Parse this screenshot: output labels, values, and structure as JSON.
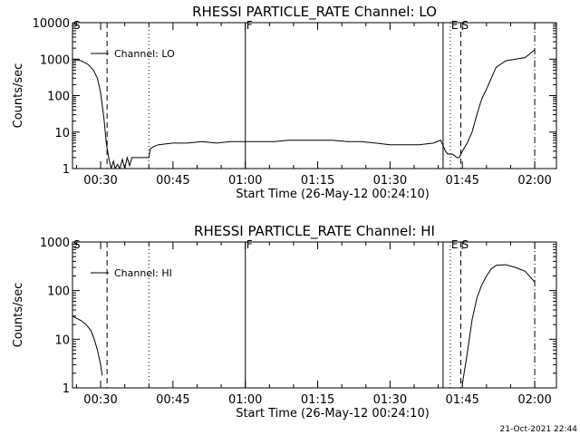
{
  "chart_data": [
    {
      "type": "line",
      "title": "RHESSI PARTICLE_RATE Channel: LO",
      "xlabel": "Start Time (26-May-12 00:24:10)",
      "ylabel": "Counts/sec",
      "yscale": "log",
      "ylim": [
        1,
        10000
      ],
      "xlim": [
        "00:24:10",
        "02:04:30"
      ],
      "y_tick_labels": [
        "1",
        "10",
        "100",
        "1000",
        "10000"
      ],
      "x_tick_labels": [
        "00:30",
        "00:45",
        "01:00",
        "01:15",
        "01:30",
        "01:45",
        "02:00"
      ],
      "x_ticks": [
        "00:30",
        "00:45",
        "01:00",
        "01:15",
        "01:30",
        "01:45",
        "02:00"
      ],
      "legend": {
        "label": "Channel: LO",
        "position": "top-left"
      },
      "grid": false,
      "markers": [
        {
          "label": "S",
          "time": "00:24:10",
          "style": "solid"
        },
        {
          "label": "",
          "time": "00:31:20",
          "style": "dashed"
        },
        {
          "label": "",
          "time": "00:40:00",
          "style": "dotted"
        },
        {
          "label": "F",
          "time": "01:00:00",
          "style": "solid"
        },
        {
          "label": "",
          "time": "01:41:00",
          "style": "solid"
        },
        {
          "label": "E",
          "time": "01:42:30",
          "style": "dotted"
        },
        {
          "label": "S",
          "time": "01:44:40",
          "style": "dashed"
        },
        {
          "label": "",
          "time": "02:00:00",
          "style": "dashdot"
        }
      ],
      "series": [
        {
          "name": "Channel: LO",
          "x": [
            "00:24:10",
            "00:26:00",
            "00:27:30",
            "00:28:30",
            "00:29:20",
            "00:30:00",
            "00:30:40",
            "00:31:10",
            "00:31:40",
            "00:32:10",
            "00:32:40",
            "00:33:00",
            "00:33:30",
            "00:34:00",
            "00:34:30",
            "00:35:00",
            "00:35:30",
            "00:36:00",
            "00:36:30",
            "00:37:00",
            "00:38:00",
            "00:39:00",
            "00:40:00",
            "00:40:20",
            "00:41:00",
            "00:42:00",
            "00:45:00",
            "00:48:00",
            "00:51:00",
            "00:54:00",
            "00:57:00",
            "01:00:00",
            "01:03:00",
            "01:06:00",
            "01:09:00",
            "01:12:00",
            "01:15:00",
            "01:18:00",
            "01:21:00",
            "01:24:00",
            "01:27:00",
            "01:30:00",
            "01:33:00",
            "01:36:00",
            "01:39:00",
            "01:40:30",
            "01:41:30",
            "01:42:00",
            "01:43:00",
            "01:43:50",
            "01:44:20",
            "01:45:00",
            "01:46:00",
            "01:47:00",
            "01:48:00",
            "01:49:00",
            "01:50:00",
            "01:51:00",
            "01:52:00",
            "01:54:00",
            "01:56:00",
            "01:58:00",
            "02:00:00"
          ],
          "y": [
            1000,
            900,
            700,
            500,
            300,
            120,
            25,
            5,
            2,
            1,
            1.6,
            1,
            1.3,
            1,
            1.8,
            1,
            2,
            1.2,
            2,
            2,
            2,
            2,
            2,
            3.5,
            4,
            4.5,
            5,
            5,
            5.5,
            5,
            5.5,
            5.5,
            5.5,
            5.5,
            6,
            6,
            6,
            6,
            5.5,
            5.5,
            5,
            4.5,
            4.5,
            4.5,
            5,
            6,
            3,
            2.5,
            2.5,
            2,
            2,
            3,
            5,
            10,
            30,
            80,
            150,
            300,
            600,
            900,
            1000,
            1100,
            1800
          ]
        }
      ]
    },
    {
      "type": "line",
      "title": "RHESSI PARTICLE_RATE Channel: HI",
      "xlabel": "Start Time (26-May-12 00:24:10)",
      "ylabel": "Counts/sec",
      "yscale": "log",
      "ylim": [
        1,
        1000
      ],
      "xlim": [
        "00:24:10",
        "02:04:30"
      ],
      "y_tick_labels": [
        "1",
        "10",
        "100",
        "1000"
      ],
      "x_tick_labels": [
        "00:30",
        "00:45",
        "01:00",
        "01:15",
        "01:30",
        "01:45",
        "02:00"
      ],
      "x_ticks": [
        "00:30",
        "00:45",
        "01:00",
        "01:15",
        "01:30",
        "01:45",
        "02:00"
      ],
      "legend": {
        "label": "Channel: HI",
        "position": "top-left"
      },
      "grid": false,
      "markers": [
        {
          "label": "S",
          "time": "00:24:10",
          "style": "solid"
        },
        {
          "label": "",
          "time": "00:31:20",
          "style": "dashed"
        },
        {
          "label": "",
          "time": "00:40:00",
          "style": "dotted"
        },
        {
          "label": "F",
          "time": "01:00:00",
          "style": "solid"
        },
        {
          "label": "",
          "time": "01:41:00",
          "style": "solid"
        },
        {
          "label": "E",
          "time": "01:42:30",
          "style": "dotted"
        },
        {
          "label": "S",
          "time": "01:44:40",
          "style": "dashed"
        },
        {
          "label": "",
          "time": "02:00:00",
          "style": "dashdot"
        }
      ],
      "series": [
        {
          "name": "Channel: HI",
          "x": [
            "00:24:10",
            "00:25:00",
            "00:26:00",
            "00:27:00",
            "00:28:00",
            "00:28:40",
            "00:29:20",
            "00:30:00",
            "00:30:20"
          ],
          "y": [
            30,
            27,
            24,
            20,
            15,
            10,
            6,
            3,
            1.8
          ]
        },
        {
          "name": "Channel: HI",
          "x": [
            "01:45:00",
            "01:46:00",
            "01:47:00",
            "01:48:00",
            "01:49:00",
            "01:50:00",
            "01:51:00",
            "01:52:00",
            "01:54:00",
            "01:56:00",
            "01:58:00",
            "02:00:00"
          ],
          "y": [
            1.2,
            5,
            25,
            70,
            130,
            200,
            280,
            330,
            340,
            300,
            250,
            150
          ]
        }
      ]
    }
  ],
  "footer": {
    "timestamp": "21-Oct-2021 22:44"
  }
}
